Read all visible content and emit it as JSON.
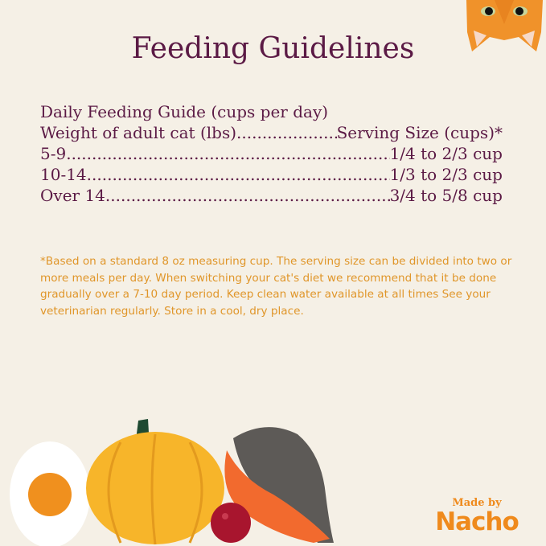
{
  "title": "Feeding Guidelines",
  "guide": {
    "heading": "Daily Feeding Guide (cups per day)",
    "header": {
      "left": "Weight of adult cat (lbs)",
      "right": "Serving Size (cups)*"
    },
    "rows": [
      {
        "weight": "5-9",
        "serving": "1/4 to 2/3 cup"
      },
      {
        "weight": "10-14",
        "serving": "1/3 to 2/3 cup"
      },
      {
        "weight": "Over 14",
        "serving": "3/4 to 5/8 cup"
      }
    ]
  },
  "note": "*Based on a standard 8 oz measuring cup. The serving size can be divided into two or more meals per day. When switching your cat's diet we recommend that it be done gradually over a 7-10 day period. Keep clean water available at all times See your veterinarian regularly. Store in a cool, dry place.",
  "logo": {
    "made_by": "Made by",
    "brand": "Nacho"
  },
  "colors": {
    "background": "#f5f0e6",
    "title": "#5b1a45",
    "note": "#e0962a",
    "brand": "#ef8a1c"
  }
}
